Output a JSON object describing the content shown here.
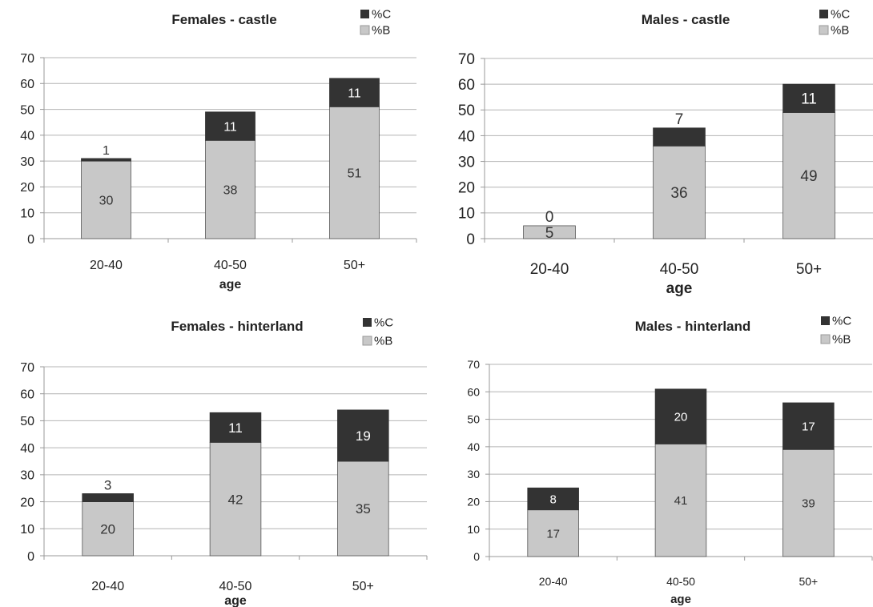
{
  "colors": {
    "C": "#333333",
    "B": "#c8c8c8",
    "grid": "#b4b4b4",
    "axis": "#999999",
    "bar_edge": "#555555",
    "label_on_dark": "#ffffff",
    "label_on_light": "#333333"
  },
  "chart_data": [
    {
      "type": "bar",
      "stacked": true,
      "title": "Females - castle",
      "xlabel": "age",
      "ylabel": "",
      "ylim": [
        0,
        70
      ],
      "yticks": [
        0,
        10,
        20,
        30,
        40,
        50,
        60,
        70
      ],
      "categories": [
        "20-40",
        "40-50",
        "50+"
      ],
      "series": [
        {
          "name": "%B",
          "values": [
            30,
            38,
            51
          ]
        },
        {
          "name": "%C",
          "values": [
            1,
            11,
            11
          ]
        }
      ],
      "legend": [
        "%C",
        "%B"
      ],
      "legend_position": "top-right",
      "grid": true
    },
    {
      "type": "bar",
      "stacked": true,
      "title": "Males - castle",
      "xlabel": "age",
      "ylabel": "",
      "ylim": [
        0,
        70
      ],
      "yticks": [
        0,
        10,
        20,
        30,
        40,
        50,
        60,
        70
      ],
      "categories": [
        "20-40",
        "40-50",
        "50+"
      ],
      "series": [
        {
          "name": "%B",
          "values": [
            5,
            36,
            49
          ]
        },
        {
          "name": "%C",
          "values": [
            0,
            7,
            11
          ]
        }
      ],
      "legend": [
        "%C",
        "%B"
      ],
      "legend_position": "top-right",
      "grid": true
    },
    {
      "type": "bar",
      "stacked": true,
      "title": "Females - hinterland",
      "xlabel": "age",
      "ylabel": "",
      "ylim": [
        0,
        70
      ],
      "yticks": [
        0,
        10,
        20,
        30,
        40,
        50,
        60,
        70
      ],
      "categories": [
        "20-40",
        "40-50",
        "50+"
      ],
      "series": [
        {
          "name": "%B",
          "values": [
            20,
            42,
            35
          ]
        },
        {
          "name": "%C",
          "values": [
            3,
            11,
            19
          ]
        }
      ],
      "legend": [
        "%C",
        "%B"
      ],
      "legend_position": "top-right",
      "grid": true
    },
    {
      "type": "bar",
      "stacked": true,
      "title": "Males - hinterland",
      "xlabel": "age",
      "ylabel": "",
      "ylim": [
        0,
        70
      ],
      "yticks": [
        0,
        10,
        20,
        30,
        40,
        50,
        60,
        70
      ],
      "categories": [
        "20-40",
        "40-50",
        "50+"
      ],
      "series": [
        {
          "name": "%B",
          "values": [
            17,
            41,
            39
          ]
        },
        {
          "name": "%C",
          "values": [
            8,
            20,
            17
          ]
        }
      ],
      "legend": [
        "%C",
        "%B"
      ],
      "legend_position": "top-right",
      "grid": true
    }
  ]
}
